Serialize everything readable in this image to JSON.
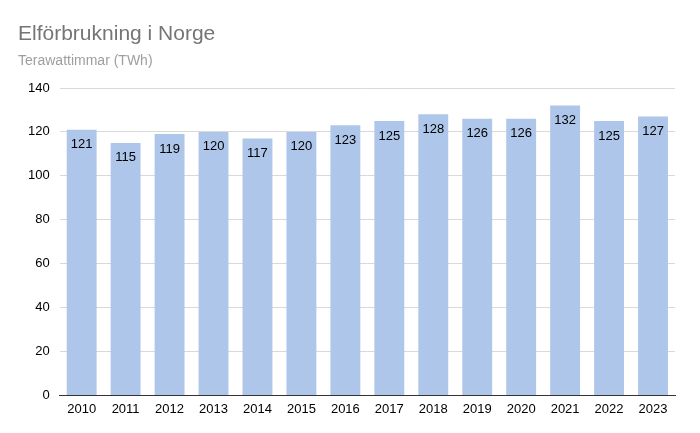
{
  "chart_data": {
    "type": "bar",
    "title": "Elförbrukning i Norge",
    "subtitle": "Terawattimmar (TWh)",
    "categories": [
      "2010",
      "2011",
      "2012",
      "2013",
      "2014",
      "2015",
      "2016",
      "2017",
      "2018",
      "2019",
      "2020",
      "2021",
      "2022",
      "2023"
    ],
    "values": [
      121,
      115,
      119,
      120,
      117,
      120,
      123,
      125,
      128,
      126,
      126,
      132,
      125,
      127
    ],
    "color": "#aec6ea",
    "ylim": [
      0,
      140
    ],
    "yticks": [
      0,
      20,
      40,
      60,
      80,
      100,
      120,
      140
    ],
    "grid": true,
    "data_labels": true
  }
}
